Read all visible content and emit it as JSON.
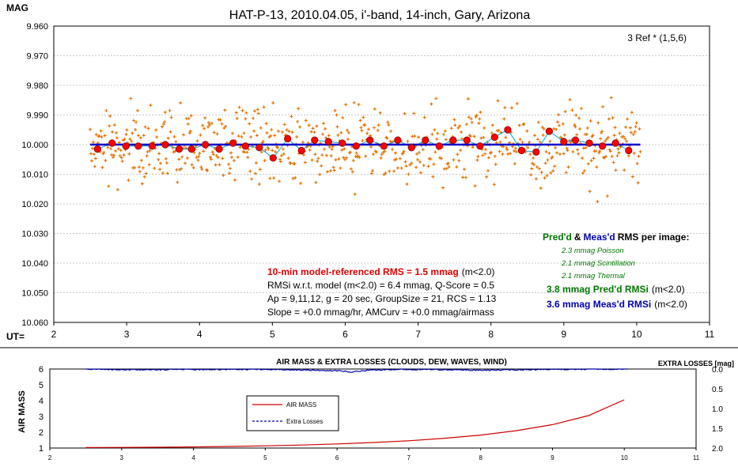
{
  "colors": {
    "marker": "#ff0000",
    "raw_points": "#e07000",
    "model_line": "#0000cc",
    "fit_line": "#00aacc",
    "airmass": "#cc0000",
    "extra_losses": "#0000aa",
    "green_text": "#007700",
    "red_text": "#dd0000",
    "blue_text": "#0000aa"
  },
  "top_chart": {
    "title": "HAT-P-13, 2010.04.05, i'-band, 14-inch, Gary, Arizona",
    "y_axis_label": "MAG",
    "x_axis_label": "UT=",
    "y_ticks": [
      "9.960",
      "9.970",
      "9.980",
      "9.990",
      "10.000",
      "10.010",
      "10.020",
      "10.030",
      "10.040",
      "10.050",
      "10.060"
    ],
    "x_ticks": [
      "2",
      "3",
      "4",
      "5",
      "6",
      "7",
      "8",
      "9",
      "10",
      "11"
    ],
    "ref_note": "3 Ref * (1,5,6)",
    "rms_line": "10-min model-referenced RMS = 1.5 mmag",
    "rms_suffix": "(m<2.0)",
    "info_lines": [
      "RMSi w.r.t. model (m<2.0) = 6.4 mmag, Q-Score = 0.5",
      "Ap = 9,11,12, g = 20 sec, GroupSize = 21, RCS = 1.13",
      "Slope = +0.0 mmag/hr, AMCurv = +0.0 mmag/airmass"
    ],
    "legend_pred": "Pred'd",
    "legend_amp": "&",
    "legend_meas": "Meas'd",
    "legend_rest": "RMS per image:",
    "poisson": "2.3 mmag Poisson",
    "scintillation": "2.1 mmag Scintillation",
    "thermal": "2.1 mmag Thermal",
    "pred_rmsi": "3.8 mmag Pred'd  RMSi",
    "meas_rmsi": "3.6 mmag Meas'd RMSi",
    "suffix": "(m<2.0)"
  },
  "bottom_chart": {
    "title": "AIR MASS & EXTRA LOSSES (CLOUDS, DEW, WAVES, WIND)",
    "right_title": "EXTRA LOSSES [mag]",
    "y_axis_label": "AIR MASS",
    "y_ticks": [
      "6",
      "5",
      "4",
      "3",
      "2",
      "1"
    ],
    "y2_ticks": [
      "0.0",
      "0.5",
      "1.0",
      "1.5",
      "2.0"
    ],
    "x_ticks": [
      "2",
      "3",
      "4",
      "5",
      "6",
      "7",
      "8",
      "9",
      "10",
      "11"
    ],
    "legend_airmass": "AIR MASS",
    "legend_losses": "Extra Losses"
  },
  "chart_data": [
    {
      "type": "scatter",
      "title": "HAT-P-13, 2010.04.05, i'-band, 14-inch, Gary, Arizona",
      "xlabel": "UT=",
      "ylabel": "MAG",
      "xlim": [
        2,
        11
      ],
      "ylim": [
        10.06,
        9.96
      ],
      "y_inverted": true,
      "series": [
        {
          "type": "binned",
          "x": [
            2.6,
            2.8,
            2.99,
            3.16,
            3.35,
            3.53,
            3.72,
            3.89,
            4.08,
            4.27,
            4.46,
            4.63,
            4.82,
            5.01,
            5.21,
            5.4,
            5.58,
            5.77,
            5.96,
            6.15,
            6.34,
            6.53,
            6.72,
            6.91,
            7.1,
            7.29,
            7.48,
            7.67,
            7.85,
            8.05,
            8.23,
            8.42,
            8.62,
            8.8,
            9.0,
            9.16,
            9.35,
            9.53,
            9.71,
            9.89
          ],
          "y": [
            10.0015,
            9.9995,
            10.0005,
            10.0005,
            10.0005,
            10.0,
            10.0015,
            10.0015,
            10.0,
            10.0015,
            9.9995,
            10.0005,
            10.001,
            10.0045,
            9.998,
            10.002,
            9.9985,
            9.999,
            9.9995,
            10.0005,
            9.9985,
            10.0005,
            9.9985,
            10.001,
            9.9985,
            10.0005,
            9.9985,
            9.9985,
            10.0005,
            9.9975,
            9.995,
            10.002,
            10.0025,
            9.9955,
            9.999,
            9.9985,
            9.9995,
            10.0005,
            9.9995,
            10.002
          ]
        },
        {
          "type": "model",
          "x": [
            2.5,
            10.05
          ],
          "y": [
            10.0,
            10.0
          ]
        }
      ]
    },
    {
      "type": "line",
      "title": "AIR MASS & EXTRA LOSSES (CLOUDS, DEW, WAVES, WIND)",
      "ylabel": "AIR MASS",
      "xlim": [
        2,
        11
      ],
      "ylim": [
        1,
        6
      ],
      "y2lim": [
        2.0,
        0.0
      ],
      "series": [
        {
          "name": "AIR MASS",
          "x": [
            2.5,
            3.0,
            3.5,
            4.0,
            4.5,
            5.0,
            5.5,
            6.0,
            6.5,
            7.0,
            7.5,
            8.0,
            8.5,
            9.0,
            9.5,
            10.0
          ],
          "y": [
            1.03,
            1.04,
            1.05,
            1.07,
            1.1,
            1.14,
            1.19,
            1.26,
            1.35,
            1.46,
            1.62,
            1.82,
            2.1,
            2.48,
            3.05,
            4.05
          ]
        },
        {
          "name": "Extra Losses",
          "x": [
            2.5,
            3.3,
            4.0,
            5.0,
            5.5,
            6.1,
            6.15,
            6.5,
            7.0,
            8.2,
            8.5,
            9.0,
            10.05
          ],
          "y": [
            0.0,
            0.02,
            0.01,
            0.01,
            0.02,
            0.05,
            0.08,
            0.02,
            0.01,
            0.03,
            0.02,
            0.01,
            0.0
          ]
        }
      ]
    }
  ]
}
